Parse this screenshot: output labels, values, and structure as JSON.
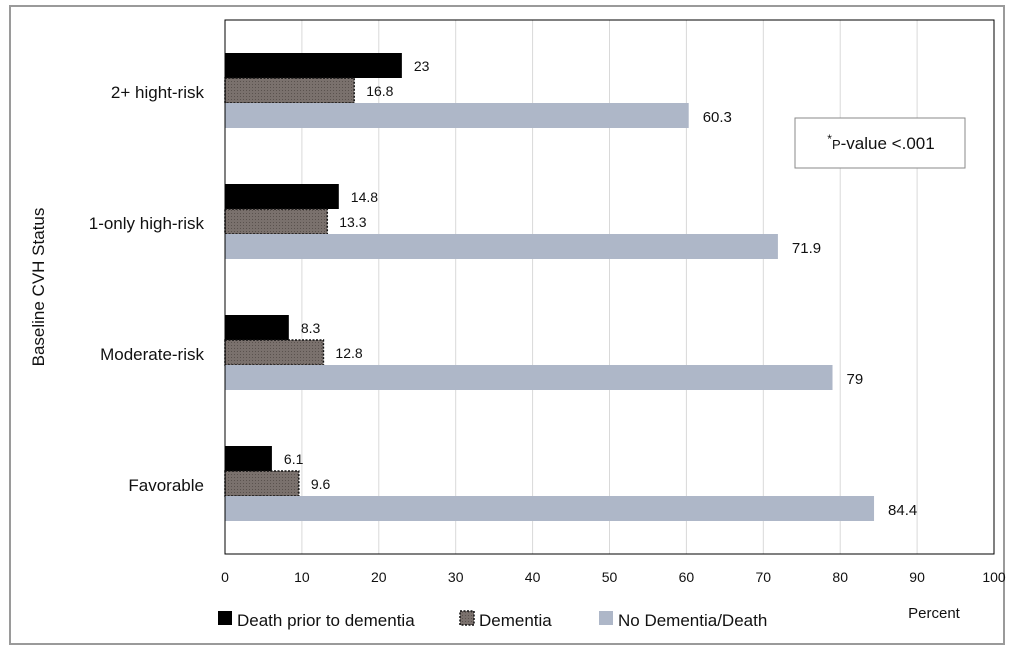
{
  "chart_data": {
    "type": "bar",
    "orientation": "horizontal",
    "categories": [
      "2+ hight-risk",
      "1-only high-risk",
      "Moderate-risk",
      "Favorable"
    ],
    "series": [
      {
        "name": "Death prior to dementia",
        "values": [
          23,
          14.8,
          8.3,
          6.1
        ],
        "color": "#000000"
      },
      {
        "name": "Dementia",
        "values": [
          16.8,
          13.3,
          12.8,
          9.6
        ],
        "color": "#7a716d"
      },
      {
        "name": "No Dementia/Death",
        "values": [
          60.3,
          71.9,
          79,
          84.4
        ],
        "color": "#aeb7c8"
      }
    ],
    "value_labels": [
      [
        "23",
        "14.8",
        "8.3",
        "6.1"
      ],
      [
        "16.8",
        "13.3",
        "12.8",
        "9.6"
      ],
      [
        "60.3",
        "71.9",
        "79",
        "84.4"
      ]
    ],
    "xlabel": "Percent",
    "ylabel": "Baseline CVH Status",
    "xlim": [
      0,
      100
    ],
    "xticks": [
      "0",
      "10",
      "20",
      "30",
      "40",
      "50",
      "60",
      "70",
      "80",
      "90",
      "100"
    ],
    "grid": "vertical",
    "legend_position": "bottom",
    "annotation": {
      "superscript": "*",
      "prefix": "P",
      "text": "-value <.001"
    }
  }
}
